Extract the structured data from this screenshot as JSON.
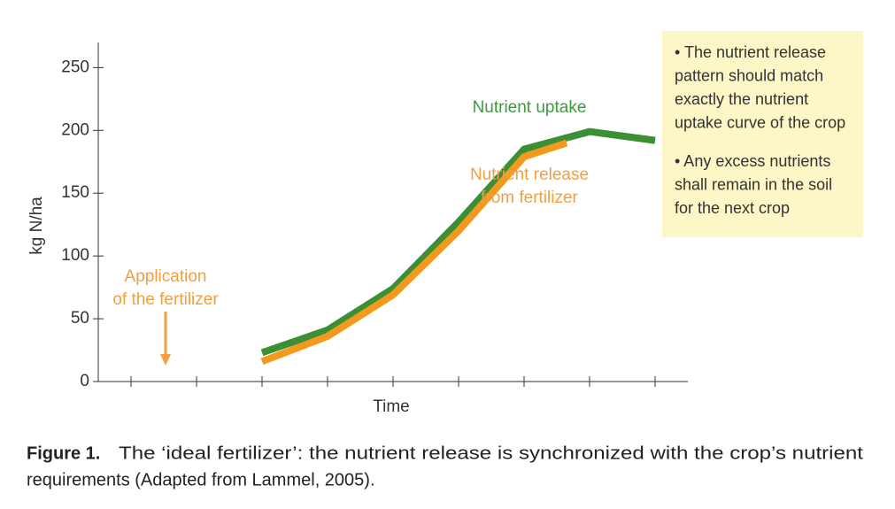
{
  "chart_data": {
    "type": "line",
    "y_label": "kg N/ha",
    "x_label": "Time",
    "ylim": [
      0,
      270
    ],
    "yticks": [
      0,
      50,
      100,
      150,
      200,
      250
    ],
    "xlim": [
      0.5,
      9.5
    ],
    "series": [
      {
        "name": "Nutrient uptake",
        "color": "#3d8f35",
        "x": [
          3,
          4,
          5,
          6,
          7,
          8,
          9
        ],
        "values": [
          23,
          41,
          74,
          127,
          185,
          199,
          192
        ]
      },
      {
        "name": "Nutrient release from fertilizer",
        "color": "#f39a1e",
        "x": [
          3,
          4,
          5,
          6,
          7,
          7.65
        ],
        "values": [
          16,
          36,
          69,
          120,
          179,
          190
        ]
      }
    ],
    "annotations": [
      {
        "lines": [
          "Nutrient uptake"
        ],
        "color": "#3d9a3a"
      },
      {
        "lines": [
          "Nutrient release",
          "from fertilizer"
        ],
        "color": "#f0a040"
      },
      {
        "lines": [
          "Application",
          "of the fertilizer"
        ],
        "color": "#f0a040"
      }
    ],
    "note": [
      [
        "• The nutrient release",
        "pattern should match",
        "exactly the nutrient",
        "uptake curve of the crop"
      ],
      [
        "• Any excess nutrients",
        "shall remain in the soil",
        "for the next crop"
      ]
    ]
  },
  "caption": {
    "label": "Figure 1.",
    "lines": [
      "The ‘ideal fertilizer’: the nutrient release is synchronized with the crop’s nutrient",
      "requirements (Adapted from Lammel, 2005)."
    ]
  }
}
